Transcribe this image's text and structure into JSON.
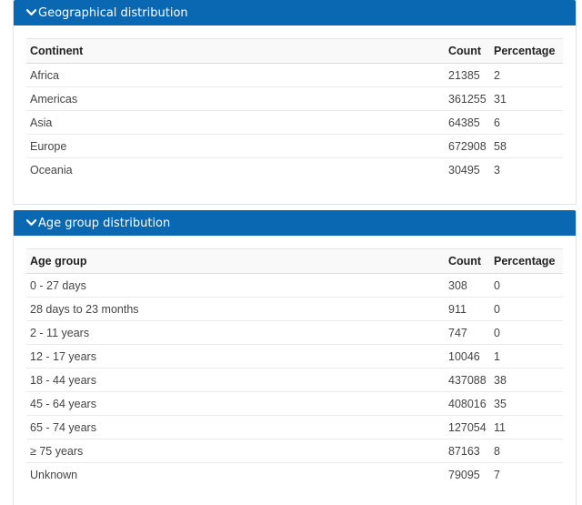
{
  "geo": {
    "title": "Geographical distribution",
    "headers": {
      "label": "Continent",
      "count": "Count",
      "percentage": "Percentage"
    },
    "rows": [
      {
        "label": "Africa",
        "count": "21385",
        "percentage": "2"
      },
      {
        "label": "Americas",
        "count": "361255",
        "percentage": "31"
      },
      {
        "label": "Asia",
        "count": "64385",
        "percentage": "6"
      },
      {
        "label": "Europe",
        "count": "672908",
        "percentage": "58"
      },
      {
        "label": "Oceania",
        "count": "30495",
        "percentage": "3"
      }
    ]
  },
  "age": {
    "title": "Age group distribution",
    "headers": {
      "label": "Age group",
      "count": "Count",
      "percentage": "Percentage"
    },
    "rows": [
      {
        "label": "0 - 27 days",
        "count": "308",
        "percentage": "0"
      },
      {
        "label": "28 days to 23 months",
        "count": "911",
        "percentage": "0"
      },
      {
        "label": "2 - 11 years",
        "count": "747",
        "percentage": "0"
      },
      {
        "label": "12 - 17 years",
        "count": "10046",
        "percentage": "1"
      },
      {
        "label": "18 - 44 years",
        "count": "437088",
        "percentage": "38"
      },
      {
        "label": "45 - 64 years",
        "count": "408016",
        "percentage": "35"
      },
      {
        "label": "65 - 74 years",
        "count": "127054",
        "percentage": "11"
      },
      {
        "label": "≥ 75 years",
        "count": "87163",
        "percentage": "8"
      },
      {
        "label": "Unknown",
        "count": "79095",
        "percentage": "7"
      }
    ]
  },
  "colors": {
    "header_bg": "#0a67b2",
    "header_text": "#ffffff"
  },
  "icons": {
    "toggle": "chevron-down-icon"
  }
}
